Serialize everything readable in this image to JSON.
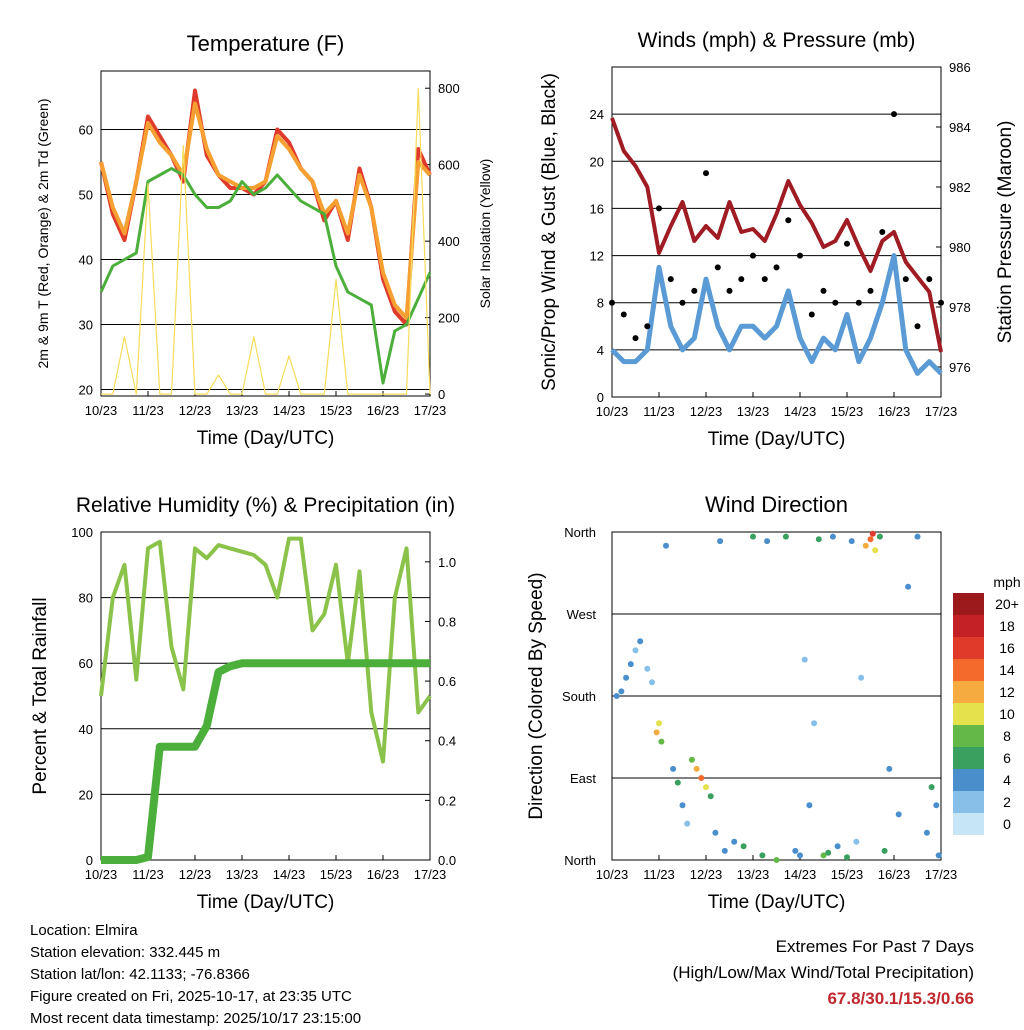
{
  "chart_data": [
    {
      "type": "line",
      "id": "temperature",
      "title": "Temperature (F)",
      "xlabel": "Time (Day/UTC)",
      "ylabel": "2m & 9m T (Red, Orange) & 2m Td (Green)",
      "ylabel_right": "Solar Insolation (Yellow)",
      "x_ticks": [
        "10/23",
        "11/23",
        "12/23",
        "13/23",
        "14/23",
        "15/23",
        "16/23",
        "17/23"
      ],
      "ylim": [
        19,
        69
      ],
      "yticks": [
        20,
        30,
        40,
        50,
        60
      ],
      "y2lim": [
        -5,
        845
      ],
      "y2ticks": [
        0,
        200,
        400,
        600,
        800
      ],
      "x": [
        0,
        0.25,
        0.5,
        0.75,
        1,
        1.25,
        1.5,
        1.75,
        2,
        2.25,
        2.5,
        2.75,
        3,
        3.25,
        3.5,
        3.75,
        4,
        4.25,
        4.5,
        4.75,
        5,
        5.25,
        5.5,
        5.75,
        6,
        6.25,
        6.5,
        6.75,
        7
      ],
      "series": [
        {
          "name": "2m T",
          "color": "#e03a2b",
          "axis": "left",
          "values": [
            55,
            47,
            43,
            52,
            62,
            59,
            56,
            52,
            66,
            56,
            53,
            51,
            51,
            50,
            52,
            60,
            58,
            54,
            52,
            46,
            49,
            43,
            54,
            48,
            37,
            32,
            30,
            57,
            53
          ]
        },
        {
          "name": "9m T",
          "color": "#f5a030",
          "axis": "left",
          "values": [
            55,
            48,
            44,
            52,
            61,
            58,
            56,
            53,
            64,
            57,
            53,
            52,
            51,
            51,
            52,
            59,
            57,
            54,
            52,
            47,
            49,
            44,
            53,
            48,
            38,
            33,
            31,
            55,
            53
          ]
        },
        {
          "name": "2m Td",
          "color": "#4caf3c",
          "axis": "left",
          "values": [
            35,
            39,
            40,
            41,
            52,
            53,
            54,
            53,
            50,
            48,
            48,
            49,
            52,
            50,
            51,
            53,
            51,
            49,
            48,
            47,
            39,
            35,
            34,
            33,
            21,
            29,
            30,
            34,
            38
          ]
        },
        {
          "name": "Solar Insolation",
          "color": "#f7dc5a",
          "axis": "right",
          "values": [
            0,
            0,
            150,
            0,
            550,
            0,
            0,
            650,
            0,
            0,
            50,
            0,
            0,
            150,
            0,
            0,
            100,
            0,
            0,
            0,
            300,
            0,
            0,
            0,
            0,
            0,
            0,
            800,
            0
          ]
        }
      ]
    },
    {
      "type": "line",
      "id": "winds-pressure",
      "title": "Winds (mph) & Pressure (mb)",
      "xlabel": "Time (Day/UTC)",
      "ylabel": "Sonic/Prop Wind & Gust (Blue, Black)",
      "ylabel_right": "Station Pressure (Maroon)",
      "x_ticks": [
        "10/23",
        "11/23",
        "12/23",
        "13/23",
        "14/23",
        "15/23",
        "16/23",
        "17/23"
      ],
      "ylim": [
        0,
        28
      ],
      "yticks": [
        0,
        4,
        8,
        12,
        16,
        20,
        24
      ],
      "y2lim": [
        975,
        986
      ],
      "y2ticks": [
        976,
        978,
        980,
        982,
        984,
        986
      ],
      "x": [
        0,
        0.25,
        0.5,
        0.75,
        1,
        1.25,
        1.5,
        1.75,
        2,
        2.25,
        2.5,
        2.75,
        3,
        3.25,
        3.5,
        3.75,
        4,
        4.25,
        4.5,
        4.75,
        5,
        5.25,
        5.5,
        5.75,
        6,
        6.25,
        6.5,
        6.75,
        7
      ],
      "series": [
        {
          "name": "Sonic/Prop Wind",
          "color": "#5b9bd5",
          "axis": "left",
          "values": [
            4,
            3,
            3,
            4,
            11,
            6,
            4,
            5,
            10,
            6,
            4,
            6,
            6,
            5,
            6,
            9,
            5,
            3,
            5,
            4,
            7,
            3,
            5,
            8,
            12,
            4,
            2,
            3,
            2
          ]
        },
        {
          "name": "Gust",
          "color": "#000000",
          "axis": "left",
          "values": [
            8,
            7,
            5,
            6,
            16,
            10,
            8,
            9,
            19,
            11,
            9,
            10,
            12,
            10,
            11,
            15,
            12,
            7,
            9,
            8,
            13,
            8,
            9,
            14,
            24,
            10,
            6,
            10,
            8
          ]
        },
        {
          "name": "Station Pressure",
          "color": "#a01c24",
          "axis": "right",
          "values": [
            984.3,
            983.2,
            982.7,
            982.0,
            979.8,
            980.7,
            981.5,
            980.2,
            980.7,
            980.3,
            981.5,
            980.5,
            980.6,
            980.2,
            981.1,
            982.2,
            981.4,
            980.8,
            980.0,
            980.2,
            980.9,
            980.0,
            979.2,
            980.2,
            980.5,
            979.5,
            979.0,
            978.5,
            976.5
          ]
        }
      ]
    },
    {
      "type": "line",
      "id": "humidity-precip",
      "title": "Relative Humidity (%) & Precipitation (in)",
      "xlabel": "Time (Day/UTC)",
      "ylabel": "Percent & Total Rainfall",
      "x_ticks": [
        "10/23",
        "11/23",
        "12/23",
        "13/23",
        "14/23",
        "15/23",
        "16/23",
        "17/23"
      ],
      "ylim": [
        0,
        100
      ],
      "yticks": [
        0,
        20,
        40,
        60,
        80,
        100
      ],
      "y2lim": [
        0,
        1.1
      ],
      "y2ticks": [
        0.0,
        0.2,
        0.4,
        0.6,
        0.8,
        1.0
      ],
      "x": [
        0,
        0.25,
        0.5,
        0.75,
        1,
        1.25,
        1.5,
        1.75,
        2,
        2.25,
        2.5,
        2.75,
        3,
        3.25,
        3.5,
        3.75,
        4,
        4.25,
        4.5,
        4.75,
        5,
        5.25,
        5.5,
        5.75,
        6,
        6.25,
        6.5,
        6.75,
        7
      ],
      "series": [
        {
          "name": "Relative Humidity",
          "color": "#8bc34a",
          "axis": "left",
          "values": [
            50,
            80,
            90,
            55,
            95,
            97,
            65,
            52,
            95,
            92,
            96,
            95,
            94,
            93,
            90,
            80,
            98,
            98,
            70,
            75,
            90,
            60,
            88,
            45,
            30,
            80,
            95,
            45,
            50
          ]
        },
        {
          "name": "Total Rainfall",
          "color": "#4caf3c",
          "axis": "right",
          "values": [
            0,
            0,
            0,
            0,
            0.01,
            0.38,
            0.38,
            0.38,
            0.38,
            0.45,
            0.63,
            0.65,
            0.66,
            0.66,
            0.66,
            0.66,
            0.66,
            0.66,
            0.66,
            0.66,
            0.66,
            0.66,
            0.66,
            0.66,
            0.66,
            0.66,
            0.66,
            0.66,
            0.66
          ]
        }
      ]
    },
    {
      "type": "scatter",
      "id": "wind-direction",
      "title": "Wind Direction",
      "xlabel": "Time (Day/UTC)",
      "ylabel": "Direction (Colored By Speed)",
      "x_ticks": [
        "10/23",
        "11/23",
        "12/23",
        "13/23",
        "14/23",
        "15/23",
        "16/23",
        "17/23"
      ],
      "y_ticks": [
        "North",
        "East",
        "South",
        "West",
        "North"
      ],
      "ylim_degrees": [
        0,
        360
      ],
      "colorbar_title": "mph",
      "colorbar_labels": [
        "0",
        "2",
        "4",
        "6",
        "8",
        "10",
        "12",
        "14",
        "16",
        "18",
        "20+"
      ],
      "colorbar_colors": [
        "#c6e6f8",
        "#86bfe8",
        "#4a8fcc",
        "#3aa060",
        "#63b847",
        "#e4e24c",
        "#f6ab40",
        "#f36a2c",
        "#e03a2b",
        "#c42127",
        "#9c1a1c"
      ],
      "points": [
        {
          "x": 0.1,
          "dir": 180,
          "speed": 4
        },
        {
          "x": 0.2,
          "dir": 185,
          "speed": 4
        },
        {
          "x": 0.3,
          "dir": 200,
          "speed": 3
        },
        {
          "x": 0.4,
          "dir": 215,
          "speed": 3
        },
        {
          "x": 0.5,
          "dir": 230,
          "speed": 2
        },
        {
          "x": 0.6,
          "dir": 240,
          "speed": 3
        },
        {
          "x": 0.75,
          "dir": 210,
          "speed": 2
        },
        {
          "x": 0.85,
          "dir": 195,
          "speed": 2
        },
        {
          "x": 0.95,
          "dir": 140,
          "speed": 11
        },
        {
          "x": 1.0,
          "dir": 150,
          "speed": 9
        },
        {
          "x": 1.05,
          "dir": 130,
          "speed": 8
        },
        {
          "x": 1.15,
          "dir": 345,
          "speed": 3
        },
        {
          "x": 1.3,
          "dir": 100,
          "speed": 4
        },
        {
          "x": 1.4,
          "dir": 85,
          "speed": 5
        },
        {
          "x": 1.5,
          "dir": 60,
          "speed": 3
        },
        {
          "x": 1.6,
          "dir": 40,
          "speed": 2
        },
        {
          "x": 1.7,
          "dir": 110,
          "speed": 7
        },
        {
          "x": 1.8,
          "dir": 100,
          "speed": 12
        },
        {
          "x": 1.9,
          "dir": 90,
          "speed": 14
        },
        {
          "x": 2.0,
          "dir": 80,
          "speed": 10
        },
        {
          "x": 2.1,
          "dir": 70,
          "speed": 6
        },
        {
          "x": 2.2,
          "dir": 30,
          "speed": 4
        },
        {
          "x": 2.3,
          "dir": 350,
          "speed": 4
        },
        {
          "x": 2.4,
          "dir": 10,
          "speed": 3
        },
        {
          "x": 2.6,
          "dir": 20,
          "speed": 4
        },
        {
          "x": 2.8,
          "dir": 15,
          "speed": 6
        },
        {
          "x": 3.0,
          "dir": 355,
          "speed": 5
        },
        {
          "x": 3.2,
          "dir": 5,
          "speed": 6
        },
        {
          "x": 3.3,
          "dir": 350,
          "speed": 4
        },
        {
          "x": 3.5,
          "dir": 0,
          "speed": 8
        },
        {
          "x": 3.7,
          "dir": 355,
          "speed": 6
        },
        {
          "x": 3.9,
          "dir": 10,
          "speed": 3
        },
        {
          "x": 4.0,
          "dir": 5,
          "speed": 4
        },
        {
          "x": 4.1,
          "dir": 220,
          "speed": 1
        },
        {
          "x": 4.2,
          "dir": 60,
          "speed": 3
        },
        {
          "x": 4.3,
          "dir": 150,
          "speed": 1
        },
        {
          "x": 4.4,
          "dir": 352,
          "speed": 5
        },
        {
          "x": 4.5,
          "dir": 5,
          "speed": 7
        },
        {
          "x": 4.6,
          "dir": 8,
          "speed": 6
        },
        {
          "x": 4.7,
          "dir": 355,
          "speed": 4
        },
        {
          "x": 4.8,
          "dir": 15,
          "speed": 4
        },
        {
          "x": 5.0,
          "dir": 3,
          "speed": 6
        },
        {
          "x": 5.1,
          "dir": 350,
          "speed": 3
        },
        {
          "x": 5.2,
          "dir": 20,
          "speed": 2
        },
        {
          "x": 5.3,
          "dir": 200,
          "speed": 1
        },
        {
          "x": 5.4,
          "dir": 345,
          "speed": 12
        },
        {
          "x": 5.5,
          "dir": 352,
          "speed": 14
        },
        {
          "x": 5.55,
          "dir": 358,
          "speed": 16
        },
        {
          "x": 5.6,
          "dir": 340,
          "speed": 10
        },
        {
          "x": 5.7,
          "dir": 355,
          "speed": 6
        },
        {
          "x": 5.8,
          "dir": 10,
          "speed": 5
        },
        {
          "x": 5.9,
          "dir": 100,
          "speed": 4
        },
        {
          "x": 6.1,
          "dir": 50,
          "speed": 3
        },
        {
          "x": 6.3,
          "dir": 300,
          "speed": 3
        },
        {
          "x": 6.5,
          "dir": 355,
          "speed": 4
        },
        {
          "x": 6.7,
          "dir": 30,
          "speed": 4
        },
        {
          "x": 6.8,
          "dir": 80,
          "speed": 6
        },
        {
          "x": 6.9,
          "dir": 60,
          "speed": 4
        },
        {
          "x": 6.95,
          "dir": 5,
          "speed": 3
        }
      ]
    }
  ],
  "footer": {
    "location": "Location: Elmira",
    "elevation": "Station elevation: 332.445 m",
    "latlon": "Station lat/lon: 42.1133; -76.8366",
    "created": "Figure created on Fri, 2025-10-17, at 23:35 UTC",
    "recent": "Most recent data timestamp: 2025/10/17 23:15:00",
    "extremes_title": "Extremes For Past 7 Days",
    "extremes_subtitle": "(High/Low/Max Wind/Total Precipitation)",
    "extremes_values": "67.8/30.1/15.3/0.66"
  }
}
